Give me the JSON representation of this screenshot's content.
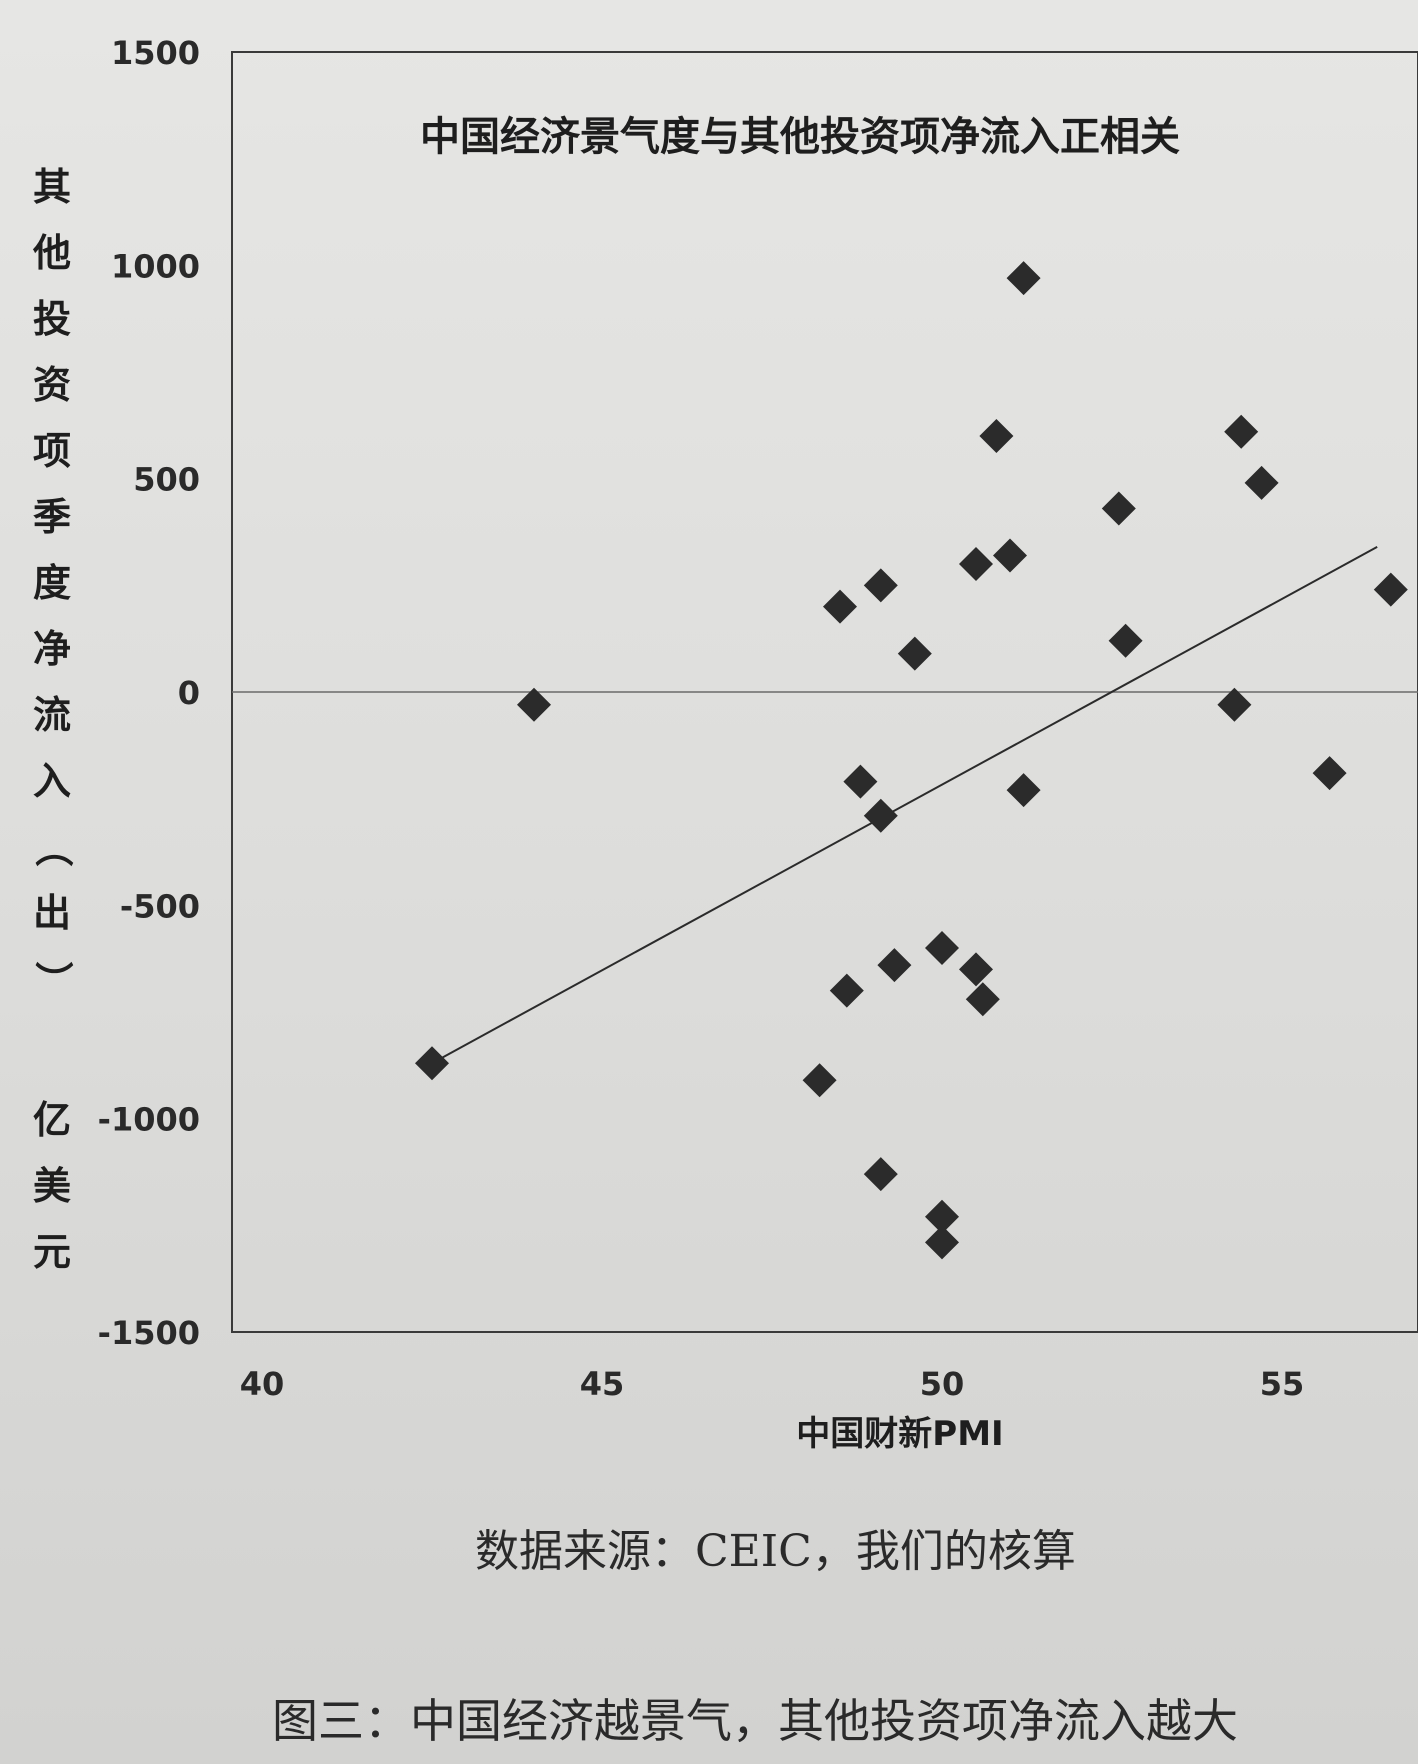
{
  "chart_data": {
    "type": "scatter",
    "title": "中国经济景气度与其他投资项净流入正相关",
    "xlabel": "中国财新PMI",
    "ylabel": "其他投资项季度净流入（出）亿美元",
    "xlim": [
      40,
      57
    ],
    "ylim": [
      -1500,
      1500
    ],
    "x_ticks": [
      "40",
      "45",
      "50",
      "55"
    ],
    "y_ticks": [
      "1500",
      "1000",
      "500",
      "0",
      "-500",
      "-1000",
      "-1500"
    ],
    "grid": false,
    "legend": "none",
    "points": [
      {
        "x": 42.5,
        "y": -870
      },
      {
        "x": 44.0,
        "y": -30
      },
      {
        "x": 48.2,
        "y": -910
      },
      {
        "x": 48.5,
        "y": 200
      },
      {
        "x": 48.6,
        "y": -700
      },
      {
        "x": 48.8,
        "y": -210
      },
      {
        "x": 49.1,
        "y": 250
      },
      {
        "x": 49.1,
        "y": -290
      },
      {
        "x": 49.1,
        "y": -1130
      },
      {
        "x": 49.3,
        "y": -640
      },
      {
        "x": 49.6,
        "y": 90
      },
      {
        "x": 50.0,
        "y": -600
      },
      {
        "x": 50.0,
        "y": -1230
      },
      {
        "x": 50.0,
        "y": -1290
      },
      {
        "x": 50.5,
        "y": 300
      },
      {
        "x": 50.5,
        "y": -650
      },
      {
        "x": 50.6,
        "y": -720
      },
      {
        "x": 50.8,
        "y": 600
      },
      {
        "x": 51.0,
        "y": 320
      },
      {
        "x": 51.2,
        "y": 970
      },
      {
        "x": 51.2,
        "y": -230
      },
      {
        "x": 52.6,
        "y": 430
      },
      {
        "x": 52.7,
        "y": 120
      },
      {
        "x": 54.3,
        "y": -30
      },
      {
        "x": 54.4,
        "y": 610
      },
      {
        "x": 54.7,
        "y": 490
      },
      {
        "x": 55.7,
        "y": -190
      },
      {
        "x": 56.6,
        "y": 240
      }
    ],
    "trendline": {
      "x": [
        42.5,
        56.4
      ],
      "y": [
        -870,
        340
      ]
    },
    "colors": {
      "marker": "#2b2b2b",
      "axis": "#3a3a3a",
      "trendline": "#2b2b2b"
    }
  },
  "footer": {
    "source": "数据来源：CEIC，我们的核算",
    "caption": "图三：中国经济越景气，其他投资项净流入越大"
  }
}
